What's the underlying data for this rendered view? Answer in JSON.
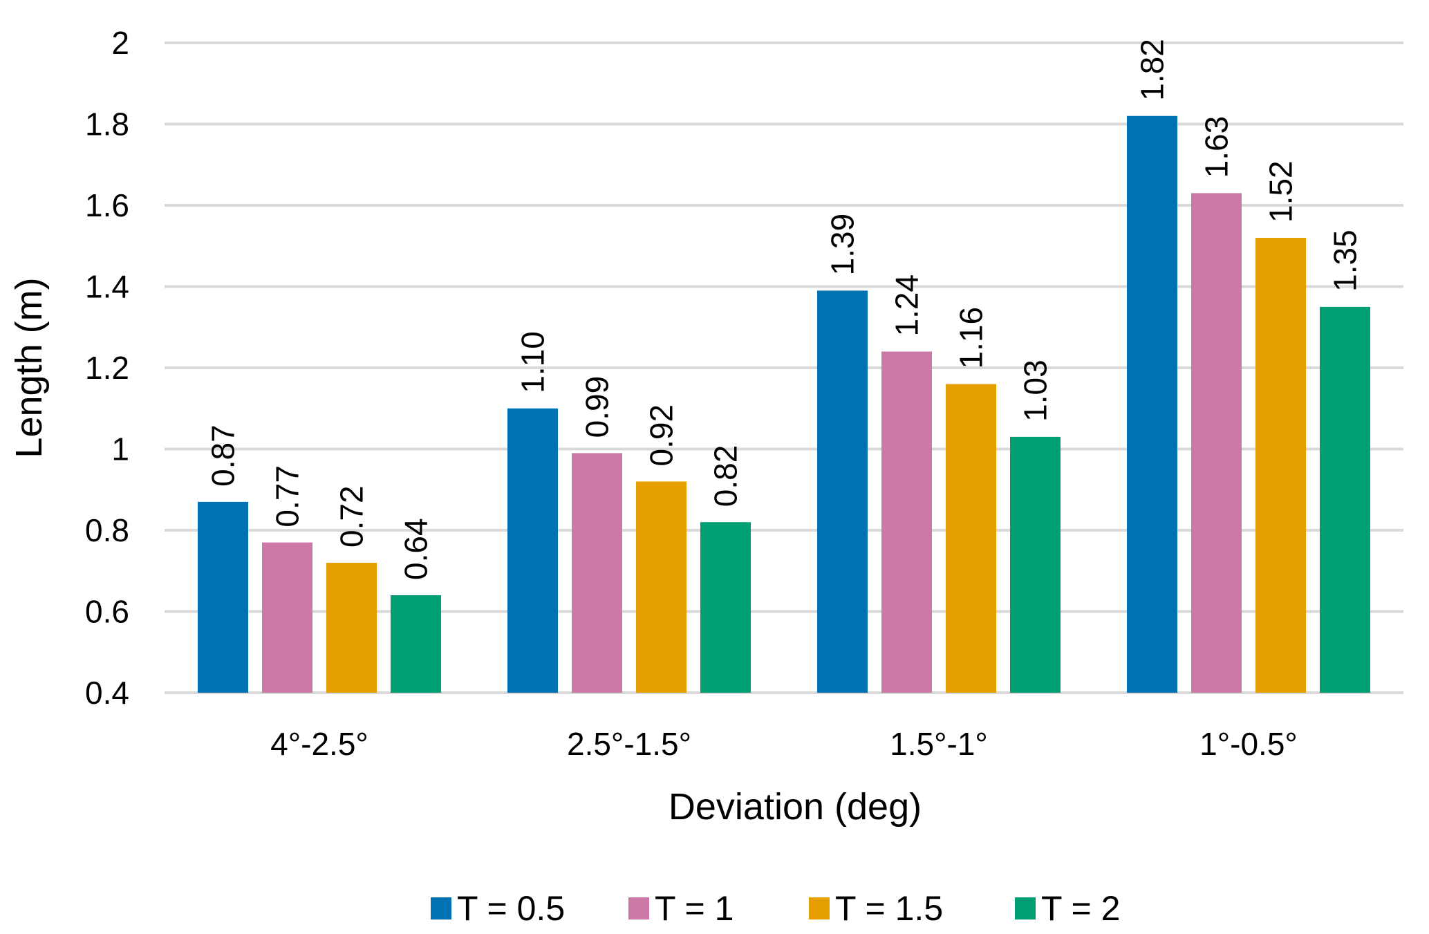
{
  "chart_data": {
    "type": "bar",
    "title": "",
    "xlabel": "Deviation (deg)",
    "ylabel": "Length (m)",
    "ylim": [
      0.4,
      2.0
    ],
    "yticks": [
      0.4,
      0.6,
      0.8,
      1.0,
      1.2,
      1.4,
      1.6,
      1.8,
      2.0
    ],
    "ytick_labels": [
      "0.4",
      "0.6",
      "0.8",
      "1",
      "1.2",
      "1.4",
      "1.6",
      "1.8",
      "2"
    ],
    "grid": true,
    "legend_position": "bottom",
    "categories": [
      "4°-2.5°",
      "2.5°-1.5°",
      "1.5°-1°",
      "1°-0.5°"
    ],
    "series": [
      {
        "name": "T = 0.5",
        "color": "#0072B2",
        "values": [
          0.87,
          1.1,
          1.39,
          1.82
        ],
        "labels": [
          "0.87",
          "1.10",
          "1.39",
          "1.82"
        ]
      },
      {
        "name": "T = 1",
        "color": "#CC79A7",
        "values": [
          0.77,
          0.99,
          1.24,
          1.63
        ],
        "labels": [
          "0.77",
          "0.99",
          "1.24",
          "1.63"
        ]
      },
      {
        "name": "T = 1.5",
        "color": "#E69F00",
        "values": [
          0.72,
          0.92,
          1.16,
          1.52
        ],
        "labels": [
          "0.72",
          "0.92",
          "1.16",
          "1.52"
        ]
      },
      {
        "name": "T = 2",
        "color": "#009E73",
        "values": [
          0.64,
          0.82,
          1.03,
          1.35
        ],
        "labels": [
          "0.64",
          "0.82",
          "1.03",
          "1.35"
        ]
      }
    ],
    "gridline_color": "#D9D9D9"
  }
}
